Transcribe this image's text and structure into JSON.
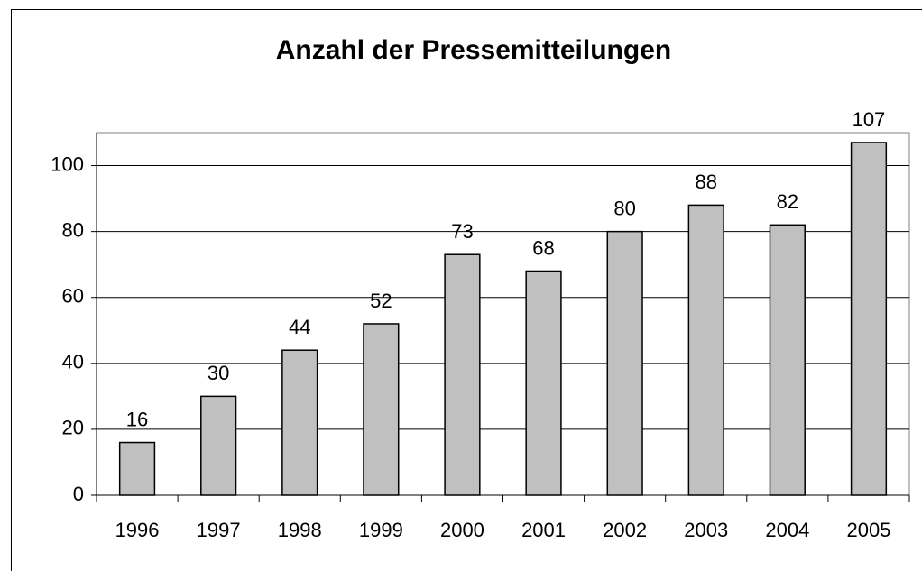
{
  "chart_data": {
    "type": "bar",
    "title": "Anzahl der Pressemitteilungen",
    "categories": [
      "1996",
      "1997",
      "1998",
      "1999",
      "2000",
      "2001",
      "2002",
      "2003",
      "2004",
      "2005"
    ],
    "values": [
      16,
      30,
      44,
      52,
      73,
      68,
      80,
      88,
      82,
      107
    ],
    "color": "#c0c0c0",
    "ylim": [
      0,
      110
    ],
    "yticks": [
      0,
      20,
      40,
      60,
      80,
      100
    ],
    "grid": true
  }
}
